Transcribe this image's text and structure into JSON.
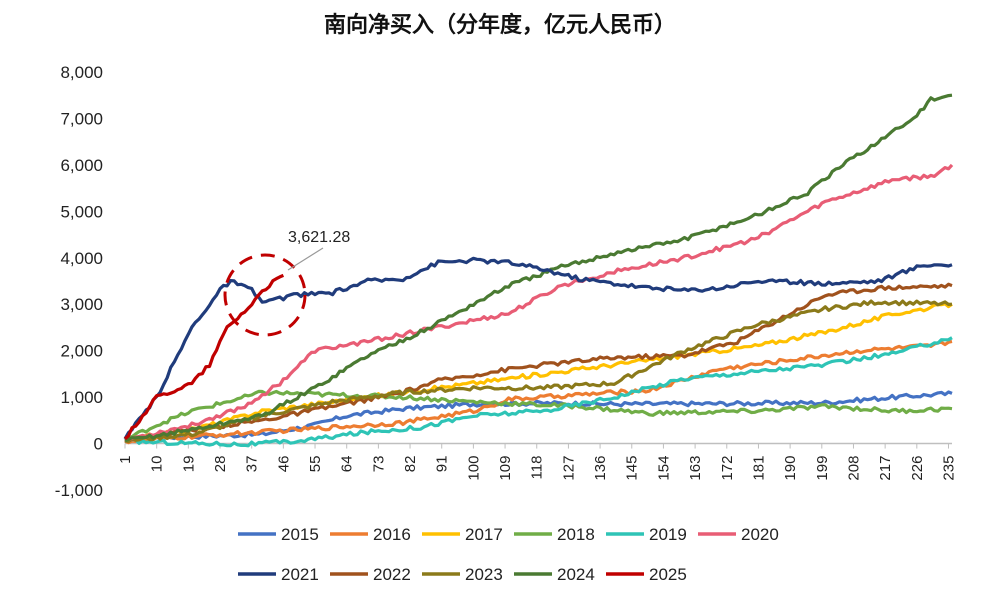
{
  "chart_data": {
    "type": "line",
    "title": "南向净买入（分年度，亿元人民币）",
    "xlabel": "",
    "ylabel": "",
    "ylim": [
      -1000,
      8000
    ],
    "yticks": [
      -1000,
      0,
      1000,
      2000,
      3000,
      4000,
      5000,
      6000,
      7000,
      8000
    ],
    "ytick_labels": [
      "-1,000",
      "0",
      "1,000",
      "2,000",
      "3,000",
      "4,000",
      "5,000",
      "6,000",
      "7,000",
      "8,000"
    ],
    "xlim": [
      1,
      236
    ],
    "xticks": [
      1,
      10,
      19,
      28,
      37,
      46,
      55,
      64,
      73,
      82,
      91,
      100,
      109,
      118,
      127,
      136,
      145,
      154,
      163,
      172,
      181,
      190,
      199,
      208,
      217,
      226,
      235
    ],
    "annotation": {
      "text": "3,621.28",
      "x": 46,
      "y": 3621.28
    },
    "series": [
      {
        "name": "2015",
        "color": "#4472c4",
        "points": [
          [
            1,
            100
          ],
          [
            20,
            150
          ],
          [
            40,
            200
          ],
          [
            55,
            400
          ],
          [
            64,
            600
          ],
          [
            80,
            750
          ],
          [
            100,
            850
          ],
          [
            120,
            870
          ],
          [
            140,
            850
          ],
          [
            170,
            860
          ],
          [
            200,
            880
          ],
          [
            220,
            1000
          ],
          [
            236,
            1080
          ]
        ]
      },
      {
        "name": "2016",
        "color": "#ed7d31",
        "points": [
          [
            1,
            50
          ],
          [
            30,
            200
          ],
          [
            60,
            350
          ],
          [
            80,
            450
          ],
          [
            100,
            700
          ],
          [
            110,
            950
          ],
          [
            130,
            1050
          ],
          [
            150,
            1150
          ],
          [
            170,
            1600
          ],
          [
            190,
            1800
          ],
          [
            210,
            2000
          ],
          [
            230,
            2100
          ],
          [
            236,
            2200
          ]
        ]
      },
      {
        "name": "2017",
        "color": "#ffc000",
        "points": [
          [
            1,
            80
          ],
          [
            20,
            300
          ],
          [
            40,
            700
          ],
          [
            60,
            900
          ],
          [
            80,
            1100
          ],
          [
            100,
            1300
          ],
          [
            120,
            1500
          ],
          [
            140,
            1700
          ],
          [
            160,
            1900
          ],
          [
            180,
            2100
          ],
          [
            200,
            2400
          ],
          [
            220,
            2800
          ],
          [
            236,
            3000
          ]
        ]
      },
      {
        "name": "2018",
        "color": "#70ad47",
        "points": [
          [
            1,
            80
          ],
          [
            10,
            400
          ],
          [
            20,
            700
          ],
          [
            30,
            900
          ],
          [
            40,
            1100
          ],
          [
            60,
            1050
          ],
          [
            80,
            1000
          ],
          [
            100,
            900
          ],
          [
            130,
            800
          ],
          [
            150,
            650
          ],
          [
            180,
            700
          ],
          [
            200,
            800
          ],
          [
            220,
            700
          ],
          [
            236,
            750
          ]
        ]
      },
      {
        "name": "2019",
        "color": "#2ec4b6",
        "points": [
          [
            1,
            50
          ],
          [
            20,
            10
          ],
          [
            35,
            -20
          ],
          [
            50,
            50
          ],
          [
            70,
            250
          ],
          [
            85,
            350
          ],
          [
            100,
            600
          ],
          [
            120,
            700
          ],
          [
            140,
            1000
          ],
          [
            160,
            1400
          ],
          [
            180,
            1550
          ],
          [
            200,
            1700
          ],
          [
            220,
            1950
          ],
          [
            236,
            2280
          ]
        ]
      },
      {
        "name": "2020",
        "color": "#e85d75",
        "points": [
          [
            1,
            80
          ],
          [
            20,
            400
          ],
          [
            35,
            800
          ],
          [
            45,
            1300
          ],
          [
            55,
            2000
          ],
          [
            70,
            2200
          ],
          [
            90,
            2500
          ],
          [
            110,
            2800
          ],
          [
            125,
            3400
          ],
          [
            140,
            3700
          ],
          [
            160,
            4000
          ],
          [
            180,
            4400
          ],
          [
            200,
            5200
          ],
          [
            220,
            5700
          ],
          [
            230,
            5750
          ],
          [
            236,
            6000
          ]
        ]
      },
      {
        "name": "2021",
        "color": "#203c7c",
        "points": [
          [
            1,
            100
          ],
          [
            10,
            1000
          ],
          [
            20,
            2500
          ],
          [
            28,
            3300
          ],
          [
            31,
            3500
          ],
          [
            37,
            3300
          ],
          [
            40,
            3050
          ],
          [
            50,
            3200
          ],
          [
            60,
            3250
          ],
          [
            70,
            3500
          ],
          [
            80,
            3550
          ],
          [
            90,
            3900
          ],
          [
            100,
            3950
          ],
          [
            110,
            3900
          ],
          [
            120,
            3750
          ],
          [
            130,
            3550
          ],
          [
            140,
            3450
          ],
          [
            150,
            3350
          ],
          [
            160,
            3300
          ],
          [
            170,
            3350
          ],
          [
            180,
            3500
          ],
          [
            200,
            3450
          ],
          [
            215,
            3500
          ],
          [
            228,
            3850
          ],
          [
            236,
            3850
          ]
        ]
      },
      {
        "name": "2022",
        "color": "#a0521d",
        "points": [
          [
            1,
            80
          ],
          [
            20,
            300
          ],
          [
            40,
            500
          ],
          [
            60,
            800
          ],
          [
            80,
            1100
          ],
          [
            90,
            1350
          ],
          [
            110,
            1600
          ],
          [
            120,
            1700
          ],
          [
            140,
            1850
          ],
          [
            160,
            1900
          ],
          [
            175,
            2200
          ],
          [
            190,
            2800
          ],
          [
            200,
            3200
          ],
          [
            215,
            3350
          ],
          [
            236,
            3400
          ]
        ]
      },
      {
        "name": "2023",
        "color": "#8b7a1a",
        "points": [
          [
            1,
            60
          ],
          [
            20,
            200
          ],
          [
            40,
            600
          ],
          [
            60,
            900
          ],
          [
            80,
            1100
          ],
          [
            100,
            1200
          ],
          [
            120,
            1200
          ],
          [
            140,
            1300
          ],
          [
            160,
            2000
          ],
          [
            180,
            2550
          ],
          [
            200,
            2900
          ],
          [
            215,
            3050
          ],
          [
            236,
            3000
          ]
        ]
      },
      {
        "name": "2024",
        "color": "#4a7a32",
        "points": [
          [
            1,
            60
          ],
          [
            20,
            300
          ],
          [
            40,
            600
          ],
          [
            55,
            1200
          ],
          [
            70,
            1900
          ],
          [
            85,
            2400
          ],
          [
            100,
            3000
          ],
          [
            110,
            3400
          ],
          [
            125,
            3800
          ],
          [
            140,
            4100
          ],
          [
            160,
            4400
          ],
          [
            180,
            4900
          ],
          [
            195,
            5400
          ],
          [
            205,
            6000
          ],
          [
            215,
            6500
          ],
          [
            225,
            7000
          ],
          [
            230,
            7400
          ],
          [
            236,
            7500
          ]
        ]
      },
      {
        "name": "2025",
        "color": "#c00000",
        "points": [
          [
            1,
            100
          ],
          [
            10,
            1000
          ],
          [
            20,
            1300
          ],
          [
            25,
            1700
          ],
          [
            30,
            2500
          ],
          [
            37,
            3000
          ],
          [
            40,
            3300
          ],
          [
            46,
            3621.28
          ]
        ]
      }
    ]
  }
}
